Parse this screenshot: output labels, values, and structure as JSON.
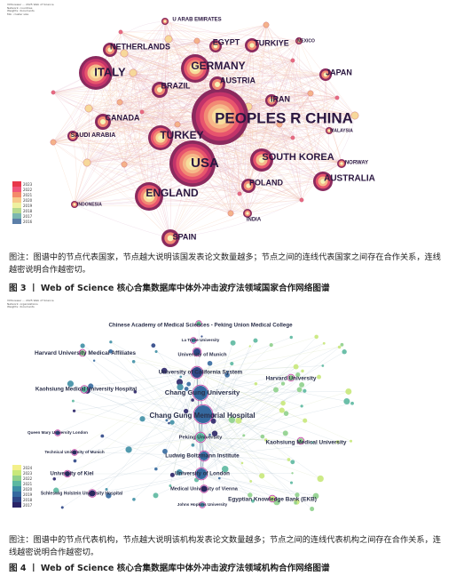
{
  "fig3": {
    "meta": [
      "VOSviewer ... 2025 Web of Science",
      "Network: countries",
      "Weights: documents",
      "Min. cluster size"
    ],
    "legend_years": [
      "2023",
      "2022",
      "2021",
      "2020",
      "2019",
      "2018",
      "2017",
      "2016"
    ],
    "legend_colors": [
      "#e8374a",
      "#f0557a",
      "#f48a6a",
      "#f7c98a",
      "#eff0a0",
      "#b5d98f",
      "#7bb7b1",
      "#5c7fa8"
    ],
    "nodes": [
      {
        "label": "PEOPLES R CHINA",
        "weight": 10
      },
      {
        "label": "USA",
        "weight": 8
      },
      {
        "label": "ITALY",
        "weight": 6
      },
      {
        "label": "GERMANY",
        "weight": 5.5
      },
      {
        "label": "ENGLAND",
        "weight": 5
      },
      {
        "label": "TURKEY",
        "weight": 4.5
      },
      {
        "label": "SOUTH KOREA",
        "weight": 4
      },
      {
        "label": "AUSTRALIA",
        "weight": 3.5
      },
      {
        "label": "SPAIN",
        "weight": 3
      },
      {
        "label": "BRAZIL",
        "weight": 3
      },
      {
        "label": "AUSTRIA",
        "weight": 3
      },
      {
        "label": "NETHERLANDS",
        "weight": 2.5
      },
      {
        "label": "CANADA",
        "weight": 2.5
      },
      {
        "label": "POLAND",
        "weight": 2.5
      },
      {
        "label": "TURKIYE",
        "weight": 2.5
      },
      {
        "label": "EGYPT",
        "weight": 2.2
      },
      {
        "label": "JAPAN",
        "weight": 2
      },
      {
        "label": "IRAN",
        "weight": 2
      },
      {
        "label": "SAUDI ARABIA",
        "weight": 1.5
      },
      {
        "label": "NORWAY",
        "weight": 1.2
      },
      {
        "label": "INDIA",
        "weight": 1.2
      },
      {
        "label": "U ARAB EMIRATES",
        "weight": 1
      },
      {
        "label": "MEXICO",
        "weight": 1
      },
      {
        "label": "MALAYSIA",
        "weight": 1
      },
      {
        "label": "INDONESIA",
        "weight": 1
      }
    ],
    "caption": "图注：图谱中的节点代表国家，节点越大说明该国发表论文数量越多；节点之间的连线代表国家之间存在合作关系，连线越密说明合作越密切。",
    "title": "图 3 丨 Web of Science 核心合集数据库中体外冲击波疗法领域国家合作网络图谱"
  },
  "fig4": {
    "meta": [
      "VOSviewer ... 2025 Web of Science",
      "Network: organizations",
      "Weights: documents"
    ],
    "legend_years": [
      "2024",
      "2023",
      "2022",
      "2021",
      "2020",
      "2019",
      "2018",
      "2017"
    ],
    "legend_colors": [
      "#f3f08a",
      "#c8e87a",
      "#8fd08c",
      "#5cb8a0",
      "#3f8fa5",
      "#35699f",
      "#2e4686",
      "#2a2467"
    ],
    "nodes": [
      {
        "label": "Chinese Academy of Medical Sciences - Peking Union Medical College"
      },
      {
        "label": "La Trobe University"
      },
      {
        "label": "Harvard University Medical Affiliates"
      },
      {
        "label": "University of Munich"
      },
      {
        "label": "University of California System"
      },
      {
        "label": "Harvard University"
      },
      {
        "label": "Kaohsiung Medical University Hospital"
      },
      {
        "label": "Chang Gung University"
      },
      {
        "label": "Chang Gung Memorial Hospital"
      },
      {
        "label": "Queen Mary University London"
      },
      {
        "label": "Peking University"
      },
      {
        "label": "Kaohsiung Medical University"
      },
      {
        "label": "Technical University of Munich"
      },
      {
        "label": "Ludwig Boltzmann Institute"
      },
      {
        "label": "University of Kiel"
      },
      {
        "label": "University of London"
      },
      {
        "label": "Medical University of Vienna"
      },
      {
        "label": "Schleswig Holstein University Hospital"
      },
      {
        "label": "Egyptian Knowledge Bank (EKB)"
      },
      {
        "label": "Johns Hopkins University"
      }
    ],
    "caption": "图注：图谱中的节点代表机构，节点越大说明该机构发表论文数量越多；节点之间的连线代表机构之间存在合作关系，连线越密说明合作越密切。",
    "title": "图 4 丨 Web of Science 核心合集数据库中体外冲击波疗法领域机构合作网络图谱"
  }
}
